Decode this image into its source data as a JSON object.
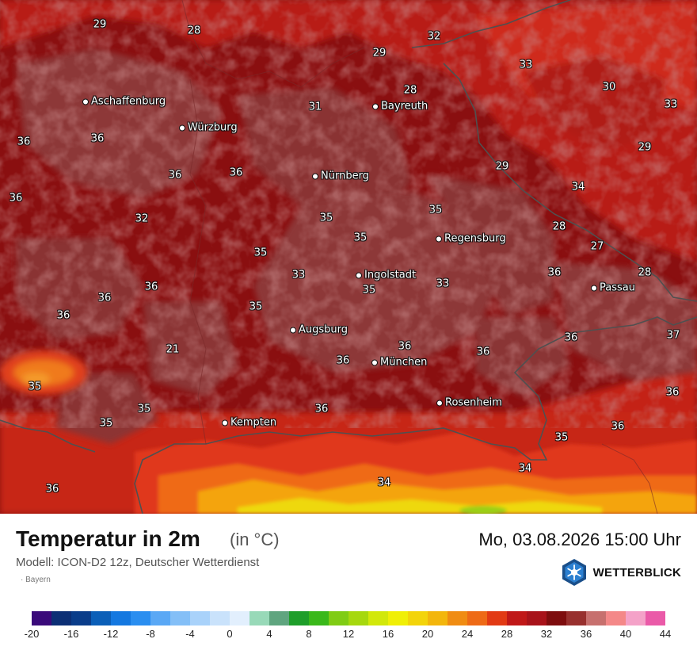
{
  "map": {
    "cities": [
      {
        "name": "Aschaffenburg"
      },
      {
        "name": "Würzburg"
      },
      {
        "name": "Bayreuth"
      },
      {
        "name": "Nürnberg"
      },
      {
        "name": "Regensburg"
      },
      {
        "name": "Ingolstadt"
      },
      {
        "name": "Passau"
      },
      {
        "name": "Augsburg"
      },
      {
        "name": "München"
      },
      {
        "name": "Rosenheim"
      },
      {
        "name": "Kempten"
      }
    ],
    "temperatures": [
      "29",
      "28",
      "32",
      "29",
      "33",
      "28",
      "31",
      "30",
      "33",
      "36",
      "36",
      "29",
      "36",
      "36",
      "29",
      "36",
      "34",
      "35",
      "35",
      "28",
      "32",
      "27",
      "35",
      "35",
      "33",
      "33",
      "36",
      "28",
      "36",
      "35",
      "36",
      "36",
      "35",
      "36",
      "37",
      "36",
      "36",
      "21",
      "35",
      "35",
      "35",
      "36",
      "36",
      "35",
      "34",
      "34",
      "36"
    ],
    "colors": {
      "field_base": "#8a0f10",
      "field_cooler": "#c8231a",
      "field_warm": "#8e3b3b",
      "alps_hot": "#f4b400",
      "alps_yellow": "#e8e000",
      "border_line": "#505050"
    }
  },
  "footer": {
    "title": "Temperatur in 2m",
    "unit": "(in °C)",
    "datetime": "Mo, 03.08.2026 15:00 Uhr",
    "model": "Modell: ICON-D2 12z, Deutscher Wetterdienst",
    "region": "· Bayern",
    "brand": "WETTERBLICK",
    "brand_icon": "sun-snowflake-logo"
  },
  "legend": {
    "colors": [
      "#3a0a7a",
      "#0c2f75",
      "#0a3d8a",
      "#0b5fb8",
      "#1478e0",
      "#2a8ef0",
      "#5aa8f5",
      "#84bff7",
      "#a9d2fa",
      "#c9e2fb",
      "#e2effd",
      "#98d9b8",
      "#5fa57f",
      "#1e9e2a",
      "#3ab81a",
      "#80cc14",
      "#a6d80e",
      "#d2e80a",
      "#f0ef06",
      "#f3d40a",
      "#f3b60c",
      "#f08c12",
      "#ee6a16",
      "#e23a14",
      "#c01818",
      "#a8131a",
      "#7e0d0e",
      "#98302e",
      "#c7706e",
      "#f48888",
      "#f4a2c8",
      "#ea5aa8"
    ],
    "ticks": [
      "-20",
      "-16",
      "-12",
      "-8",
      "-4",
      "0",
      "4",
      "8",
      "12",
      "16",
      "20",
      "24",
      "28",
      "32",
      "36",
      "40",
      "44"
    ]
  }
}
